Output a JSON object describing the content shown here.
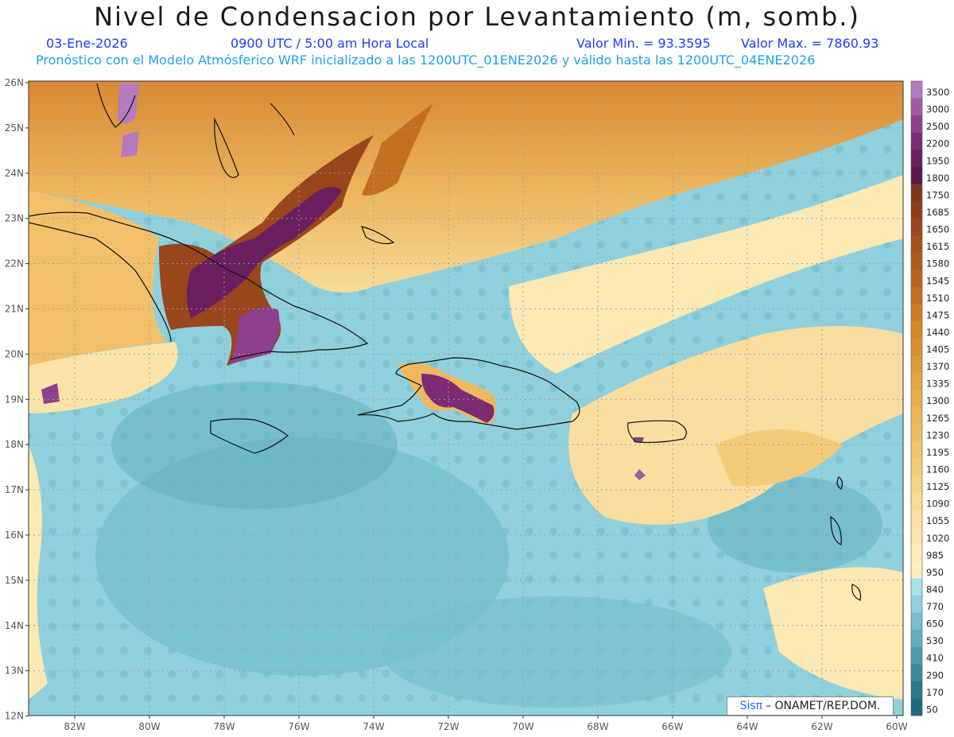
{
  "header": {
    "title": "Nivel de Condensacion por Levantamiento (m, somb.)",
    "date": "03-Ene-2026",
    "time": "0900 UTC / 5:00 am Hora Local",
    "min_label": "Valor Min. = 93.3595",
    "max_label": "Valor Max. = 7860.93",
    "forecast": "Pronóstico con el Modelo Atmósferico WRF inicializado a las 1200UTC_01ENE2026 y válido hasta las  1200UTC_04ENE2026"
  },
  "axes": {
    "lat_labels": [
      "26N",
      "25N",
      "24N",
      "23N",
      "22N",
      "21N",
      "20N",
      "19N",
      "18N",
      "17N",
      "16N",
      "15N",
      "14N",
      "13N",
      "12N"
    ],
    "lon_labels": [
      "82W",
      "80W",
      "78W",
      "76W",
      "74W",
      "72W",
      "70W",
      "68W",
      "66W",
      "64W",
      "62W",
      "60W"
    ]
  },
  "colorbar": {
    "labels": [
      "3500",
      "3000",
      "2500",
      "2200",
      "1950",
      "1800",
      "1750",
      "1685",
      "1650",
      "1615",
      "1580",
      "1545",
      "1510",
      "1475",
      "1440",
      "1405",
      "1370",
      "1335",
      "1300",
      "1265",
      "1230",
      "1195",
      "1160",
      "1125",
      "1090",
      "1055",
      "1020",
      "985",
      "950",
      "840",
      "770",
      "650",
      "530",
      "410",
      "290",
      "170",
      "50"
    ],
    "colors": [
      "#b57ac0",
      "#a25aa8",
      "#8e3f8f",
      "#7c2b74",
      "#6b1f5f",
      "#5a1749",
      "#80381f",
      "#8c3d1e",
      "#9a461d",
      "#a5501d",
      "#b05a1d",
      "#bb641e",
      "#c46f20",
      "#cc7a24",
      "#d4862a",
      "#da9131",
      "#df9b39",
      "#e4a542",
      "#e8ae4c",
      "#ecb657",
      "#efbe62",
      "#f2c56d",
      "#f4cc79",
      "#f6d385",
      "#f8da92",
      "#f9e09e",
      "#fae5aa",
      "#fbeab6",
      "#fcefc2",
      "#a8e0e8",
      "#8fd0dc",
      "#76bfcc",
      "#5faebe",
      "#4a9bad",
      "#388a9d",
      "#28798c",
      "#1e6a7c"
    ]
  },
  "credit": {
    "sis": "Sisπ",
    "org": "– ONAMET/REP.DOM."
  }
}
